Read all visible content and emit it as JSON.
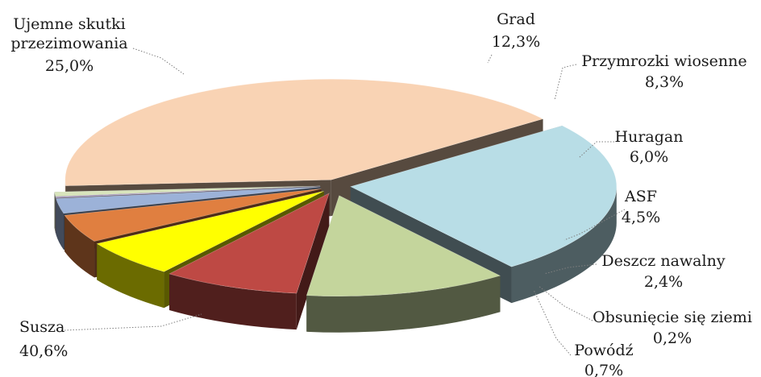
{
  "chart_data": {
    "type": "pie",
    "title": "",
    "slices": [
      {
        "label": "Susza",
        "value": 40.6,
        "display": "40,6%",
        "color": "#f9d3b4"
      },
      {
        "label": "Ujemne skutki przezimowania",
        "value": 25.0,
        "display": "25,0%",
        "color": "#b8dde6"
      },
      {
        "label": "Grad",
        "value": 12.3,
        "display": "12,3%",
        "color": "#c4d59c"
      },
      {
        "label": "Przymrozki wiosenne",
        "value": 8.3,
        "display": "8,3%",
        "color": "#be4944"
      },
      {
        "label": "Huragan",
        "value": 6.0,
        "display": "6,0%",
        "color": "#ffff00"
      },
      {
        "label": "ASF",
        "value": 4.5,
        "display": "4,5%",
        "color": "#e07f40"
      },
      {
        "label": "Deszcz nawalny",
        "value": 2.4,
        "display": "2,4%",
        "color": "#9cb2d8"
      },
      {
        "label": "Obsunięcie się ziemi",
        "value": 0.2,
        "display": "0,2%",
        "color": "#b2a2c8"
      },
      {
        "label": "Powódź",
        "value": 0.7,
        "display": "0,7%",
        "color": "#d8e4bc"
      }
    ]
  }
}
